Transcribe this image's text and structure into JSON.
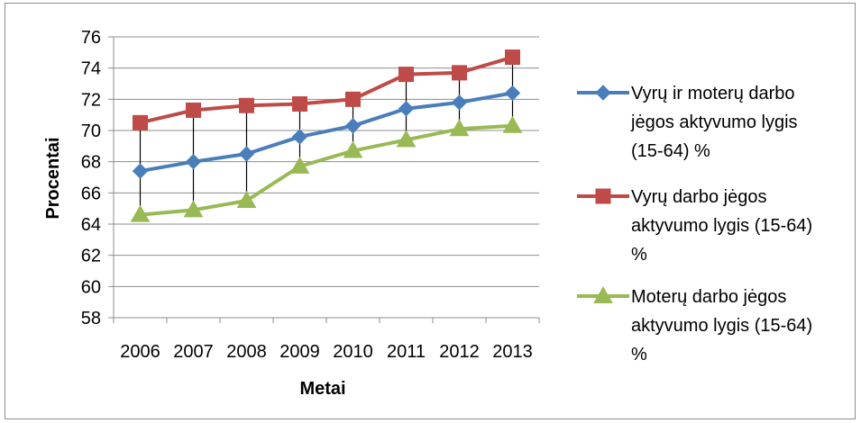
{
  "chart_data": {
    "type": "line",
    "x": [
      "2006",
      "2007",
      "2008",
      "2009",
      "2010",
      "2011",
      "2012",
      "2013"
    ],
    "series": [
      {
        "name": "Vyrų ir moterų darbo jėgos aktyvumo lygis (15-64) %",
        "name_lines": [
          "Vyrų ir moterų darbo",
          "jėgos aktyvumo lygis",
          "(15-64) %"
        ],
        "values": [
          67.4,
          68.0,
          68.5,
          69.6,
          70.3,
          71.4,
          71.8,
          72.4
        ],
        "color": "#4a7ebb",
        "marker": "diamond"
      },
      {
        "name": "Vyrų darbo jėgos aktyvumo lygis (15-64) %",
        "name_lines": [
          "Vyrų darbo jėgos",
          "aktyvumo lygis (15-64)",
          "%"
        ],
        "values": [
          70.5,
          71.3,
          71.6,
          71.7,
          72.0,
          73.6,
          73.7,
          74.7
        ],
        "color": "#be4b48",
        "marker": "square"
      },
      {
        "name": "Moterų darbo jėgos aktyvumo lygis (15-64) %",
        "name_lines": [
          "Moterų darbo jėgos",
          "aktyvumo lygis (15-64)",
          "%"
        ],
        "values": [
          64.6,
          64.9,
          65.5,
          67.7,
          68.7,
          69.4,
          70.1,
          70.3
        ],
        "color": "#98b954",
        "marker": "triangle"
      }
    ],
    "xlabel": "Metai",
    "ylabel": "Procentai",
    "ylim": [
      58,
      76
    ],
    "y_ticks": [
      58,
      60,
      62,
      64,
      66,
      68,
      70,
      72,
      74,
      76
    ],
    "grid": true,
    "high_low_lines": true,
    "legend_position": "right"
  }
}
